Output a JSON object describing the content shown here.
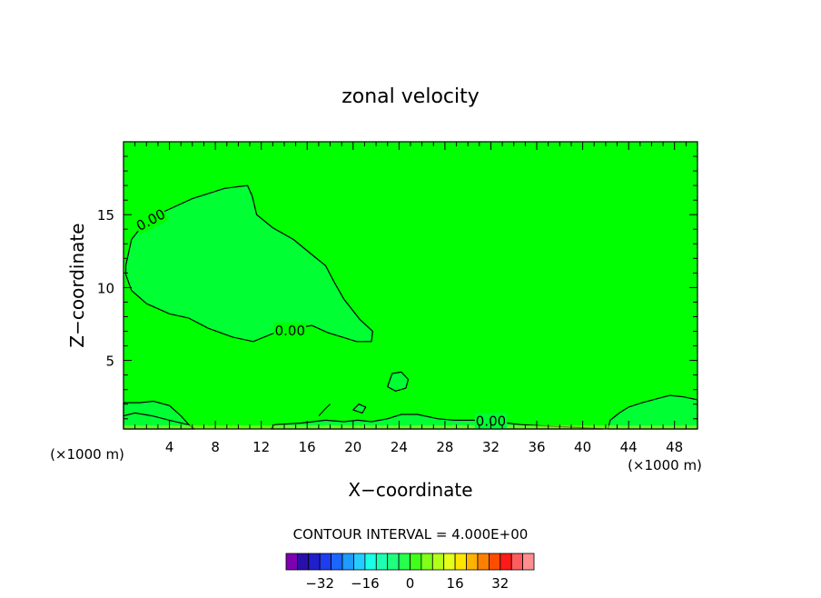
{
  "chart_data": {
    "type": "contour",
    "title": "zonal velocity",
    "xlabel": "X−coordinate",
    "ylabel": "Z−coordinate",
    "x_unit_left": "(×1000 m)",
    "x_unit_right": "(×1000 m)",
    "xlim": [
      0,
      50
    ],
    "ylim": [
      0.3,
      20
    ],
    "x_ticks": [
      4,
      8,
      12,
      16,
      20,
      24,
      28,
      32,
      36,
      40,
      44,
      48
    ],
    "x_tick_labels": [
      "4",
      "8",
      "12",
      "16",
      "20",
      "24",
      "28",
      "32",
      "36",
      "40",
      "44",
      "48"
    ],
    "y_ticks": [
      5,
      10,
      15
    ],
    "y_tick_labels": [
      "5",
      "10",
      "15"
    ],
    "contour_interval_text": "CONTOUR INTERVAL = 4.000E+00",
    "contour_label": "0.00",
    "contour_labels": [
      {
        "text": "0.00",
        "x": 2.4,
        "z": 14.6
      },
      {
        "text": "0.00",
        "x": 14.5,
        "z": 7.0
      },
      {
        "text": "0.00",
        "x": 32.0,
        "z": 0.8
      }
    ],
    "background_color": "#00ff00",
    "region_color": "#00ff33",
    "regions": [
      {
        "name": "positive-region-main",
        "points": [
          [
            0.2,
            11.5
          ],
          [
            0.7,
            13.3
          ],
          [
            1.6,
            14.2
          ],
          [
            3.5,
            15.2
          ],
          [
            6.0,
            16.1
          ],
          [
            8.8,
            16.8
          ],
          [
            10.8,
            17.0
          ],
          [
            11.2,
            16.3
          ],
          [
            11.6,
            15.0
          ],
          [
            13.0,
            14.1
          ],
          [
            14.8,
            13.3
          ],
          [
            16.5,
            12.2
          ],
          [
            17.6,
            11.5
          ],
          [
            18.4,
            10.3
          ],
          [
            19.2,
            9.2
          ],
          [
            20.6,
            7.8
          ],
          [
            21.7,
            7.0
          ],
          [
            21.6,
            6.3
          ],
          [
            20.3,
            6.3
          ],
          [
            17.8,
            6.9
          ],
          [
            16.4,
            7.4
          ],
          [
            13.5,
            7.0
          ],
          [
            11.3,
            6.3
          ],
          [
            9.5,
            6.6
          ],
          [
            7.4,
            7.2
          ],
          [
            5.7,
            7.9
          ],
          [
            4.0,
            8.2
          ],
          [
            2.0,
            8.9
          ],
          [
            0.7,
            9.8
          ],
          [
            0.2,
            10.9
          ]
        ]
      },
      {
        "name": "positive-region-blob",
        "points": [
          [
            23.0,
            3.2
          ],
          [
            23.4,
            4.1
          ],
          [
            24.2,
            4.2
          ],
          [
            24.8,
            3.7
          ],
          [
            24.6,
            3.1
          ],
          [
            23.7,
            2.9
          ]
        ]
      },
      {
        "name": "positive-region-small",
        "points": [
          [
            20.0,
            1.6
          ],
          [
            20.5,
            2.0
          ],
          [
            21.1,
            1.8
          ],
          [
            20.8,
            1.4
          ]
        ]
      },
      {
        "name": "positive-region-left-bottom",
        "points": [
          [
            0,
            0.3
          ],
          [
            0,
            2.1
          ],
          [
            1.4,
            2.1
          ],
          [
            2.6,
            2.2
          ],
          [
            4.0,
            1.9
          ],
          [
            5.0,
            1.2
          ],
          [
            5.8,
            0.5
          ],
          [
            6.2,
            0.3
          ]
        ]
      },
      {
        "name": "positive-region-right-bottom",
        "points": [
          [
            42.2,
            0.3
          ],
          [
            42.4,
            0.9
          ],
          [
            43.2,
            1.4
          ],
          [
            44.0,
            1.8
          ],
          [
            45.2,
            2.1
          ],
          [
            46.6,
            2.4
          ],
          [
            47.6,
            2.6
          ],
          [
            48.8,
            2.5
          ],
          [
            50.0,
            2.3
          ],
          [
            50.0,
            0.3
          ]
        ]
      },
      {
        "name": "positive-region-bottom-strip",
        "points": [
          [
            12.8,
            0.3
          ],
          [
            13.2,
            0.6
          ],
          [
            15.4,
            0.7
          ],
          [
            17.6,
            0.9
          ],
          [
            19.2,
            0.8
          ],
          [
            20.4,
            0.9
          ],
          [
            21.6,
            0.8
          ],
          [
            23.0,
            1.0
          ],
          [
            24.2,
            1.3
          ],
          [
            25.6,
            1.3
          ],
          [
            27.4,
            1.0
          ],
          [
            28.8,
            0.9
          ],
          [
            30.4,
            0.9
          ],
          [
            32.4,
            0.8
          ],
          [
            34.6,
            0.6
          ],
          [
            37.0,
            0.5
          ],
          [
            39.6,
            0.4
          ],
          [
            41.8,
            0.3
          ]
        ]
      }
    ],
    "contour_lines": [
      {
        "name": "contour-line-small-arc",
        "points": [
          [
            17.0,
            1.2
          ],
          [
            17.6,
            1.7
          ],
          [
            18.0,
            2.0
          ]
        ]
      },
      {
        "name": "contour-line-left-inner",
        "points": [
          [
            0,
            1.2
          ],
          [
            1.0,
            1.4
          ],
          [
            2.5,
            1.2
          ],
          [
            4.0,
            0.9
          ],
          [
            5.6,
            0.6
          ]
        ]
      }
    ],
    "colorbar": {
      "colors": [
        "#7f00b2",
        "#2a0fa8",
        "#1f1fcc",
        "#1f3df0",
        "#1a66ff",
        "#1f9aff",
        "#26ccff",
        "#1affe6",
        "#1fffb2",
        "#1fff80",
        "#26ff4d",
        "#40ff1a",
        "#80ff1a",
        "#b3ff1a",
        "#e6ff1a",
        "#ffe600",
        "#ffb300",
        "#ff8000",
        "#ff4d00",
        "#ff1a1a",
        "#ff5d5d",
        "#ff8f8f"
      ],
      "tick_labels": [
        "−32",
        "−16",
        "0",
        "16",
        "32"
      ],
      "tick_values": [
        -32,
        -16,
        0,
        16,
        32
      ],
      "min": -44,
      "max": 44
    }
  }
}
